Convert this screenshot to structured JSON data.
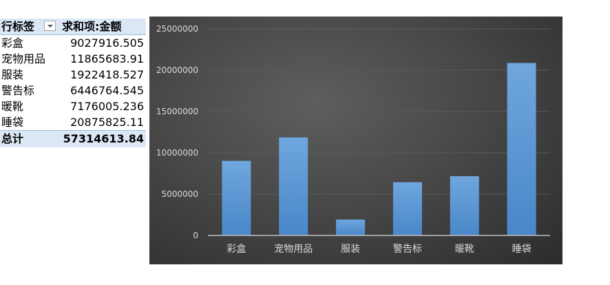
{
  "pivot": {
    "header": {
      "row_label": "行标签",
      "value_label": "求和项:金额"
    },
    "rows": [
      {
        "label": "彩盒",
        "value": "9027916.505"
      },
      {
        "label": "宠物用品",
        "value": "11865683.91"
      },
      {
        "label": "服装",
        "value": "1922418.527"
      },
      {
        "label": "警告标",
        "value": "6446764.545"
      },
      {
        "label": "暖靴",
        "value": "7176005.236"
      },
      {
        "label": "睡袋",
        "value": "20875825.11"
      }
    ],
    "total": {
      "label": "总计",
      "value": "57314613.84"
    }
  },
  "chart_data": {
    "type": "bar",
    "categories": [
      "彩盒",
      "宠物用品",
      "服装",
      "警告标",
      "暖靴",
      "睡袋"
    ],
    "values": [
      9027916.505,
      11865683.91,
      1922418.527,
      6446764.545,
      7176005.236,
      20875825.11
    ],
    "ylim": [
      0,
      25000000
    ],
    "yticks": [
      "0",
      "5000000",
      "10000000",
      "15000000",
      "20000000",
      "25000000"
    ],
    "grid": true,
    "colors": {
      "bar": "#5b9bd5",
      "background": "#404040",
      "text": "#d9d9d9",
      "grid": "#5a5a5a"
    }
  }
}
